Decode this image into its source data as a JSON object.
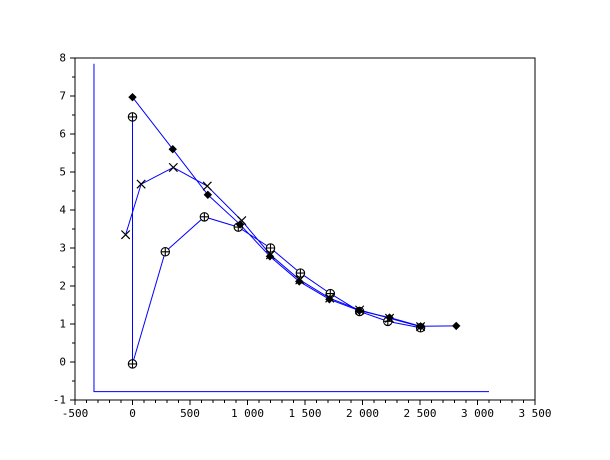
{
  "figure": {
    "background_color": "#ffffff",
    "title": ""
  },
  "chart_data": {
    "type": "line",
    "title": "",
    "xlabel": "",
    "ylabel": "",
    "grid": false,
    "legend": "none",
    "xlim": [
      -500,
      3500
    ],
    "ylim": [
      -1,
      8
    ],
    "x_ticks": {
      "major_step": 500,
      "minor_step": 100,
      "labels": [
        "-500",
        "0",
        "500",
        "1 000",
        "1 500",
        "2 000",
        "2 500",
        "3 000",
        "3 500"
      ]
    },
    "y_ticks": {
      "major_step": 1,
      "minor_step": 0.5,
      "labels": [
        "-1",
        "0",
        "1",
        "2",
        "3",
        "4",
        "5",
        "6",
        "7",
        "8"
      ]
    },
    "axis_color": "#000000",
    "line_color": "#0000ff",
    "marker_color": "#000000",
    "series": [
      {
        "name": "boundary-line",
        "marker": "none",
        "points": [
          [
            -335,
            7.85
          ],
          [
            -335,
            -0.78
          ],
          [
            3100,
            -0.78
          ]
        ]
      },
      {
        "name": "circle-plus-series",
        "marker": "circle-plus",
        "points": [
          [
            0,
            6.45
          ],
          [
            0,
            -0.05
          ],
          [
            285,
            2.9
          ],
          [
            625,
            3.82
          ],
          [
            920,
            3.55
          ],
          [
            1200,
            3.0
          ],
          [
            1460,
            2.34
          ],
          [
            1720,
            1.8
          ],
          [
            1975,
            1.33
          ],
          [
            2220,
            1.07
          ],
          [
            2505,
            0.9
          ]
        ]
      },
      {
        "name": "cross-series",
        "marker": "x-cross",
        "points": [
          [
            -60,
            3.35
          ],
          [
            75,
            4.68
          ],
          [
            355,
            5.12
          ],
          [
            650,
            4.63
          ],
          [
            950,
            3.72
          ],
          [
            1200,
            2.82
          ],
          [
            1455,
            2.16
          ],
          [
            1715,
            1.68
          ],
          [
            1975,
            1.37
          ],
          [
            2235,
            1.15
          ],
          [
            2505,
            0.93
          ]
        ]
      },
      {
        "name": "diamond-series",
        "marker": "filled-diamond",
        "points": [
          [
            0,
            6.97
          ],
          [
            350,
            5.6
          ],
          [
            655,
            4.4
          ],
          [
            935,
            3.62
          ],
          [
            1195,
            2.78
          ],
          [
            1450,
            2.12
          ],
          [
            1712,
            1.65
          ],
          [
            1972,
            1.35
          ],
          [
            2235,
            1.17
          ],
          [
            2505,
            0.94
          ],
          [
            2815,
            0.95
          ]
        ]
      }
    ]
  }
}
